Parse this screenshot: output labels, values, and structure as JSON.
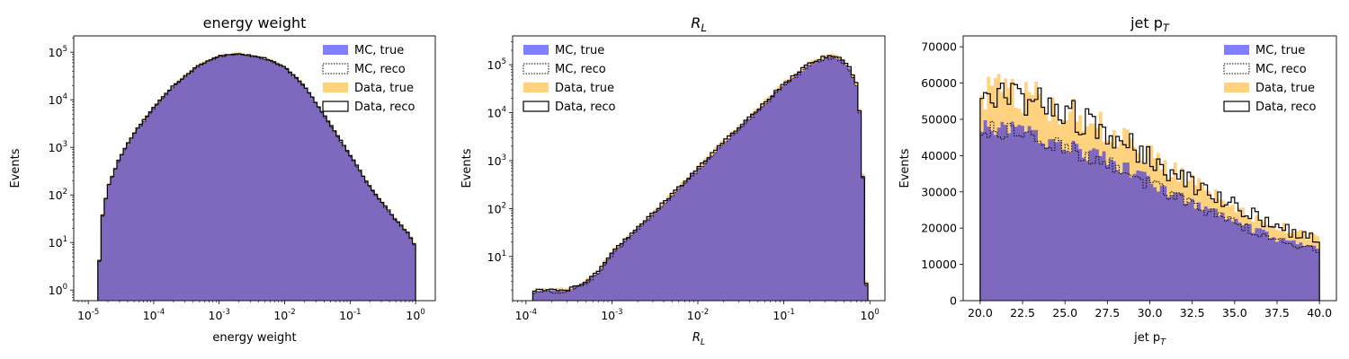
{
  "figure": {
    "colors": {
      "mc_true": "#0000ff",
      "data_true": "#ffa500",
      "overlap": "#bf9383",
      "reco_edge": "#000000"
    }
  },
  "chart_data": [
    {
      "type": "histogram",
      "title": "energy weight",
      "xlabel": "energy weight",
      "ylabel": "Events",
      "xscale": "log",
      "yscale": "log",
      "xlim": [
        6e-06,
        2.0
      ],
      "ylim": [
        0.6,
        220000.0
      ],
      "x_ticks": [
        1e-05,
        0.0001,
        0.001,
        0.01,
        0.1,
        1
      ],
      "x_tick_labels": [
        [
          "10",
          "-5"
        ],
        [
          "10",
          "-4"
        ],
        [
          "10",
          "-3"
        ],
        [
          "10",
          "-2"
        ],
        [
          "10",
          "-1"
        ],
        [
          "10",
          "0"
        ]
      ],
      "y_ticks": [
        1,
        10,
        100,
        1000,
        10000,
        100000
      ],
      "y_tick_labels": [
        [
          "10",
          "0"
        ],
        [
          "10",
          "1"
        ],
        [
          "10",
          "2"
        ],
        [
          "10",
          "3"
        ],
        [
          "10",
          "4"
        ],
        [
          "10",
          "5"
        ]
      ],
      "legend": [
        "MC, true",
        "MC, reco",
        "Data, true",
        "Data, reco"
      ],
      "legend_loc": "upper right",
      "profile": {
        "x_range": [
          1.4e-05,
          1.0
        ],
        "points": [
          [
            1.4e-05,
            1
          ],
          [
            1.6e-05,
            30
          ],
          [
            2e-05,
            150
          ],
          [
            3e-05,
            600
          ],
          [
            5e-05,
            2000
          ],
          [
            0.0001,
            7000
          ],
          [
            0.0002,
            20000
          ],
          [
            0.0005,
            55000
          ],
          [
            0.001,
            85000
          ],
          [
            0.002,
            95000
          ],
          [
            0.005,
            75000
          ],
          [
            0.01,
            50000
          ],
          [
            0.02,
            20000
          ],
          [
            0.05,
            3000
          ],
          [
            0.1,
            700
          ],
          [
            0.2,
            150
          ],
          [
            0.5,
            30
          ],
          [
            0.8,
            15
          ],
          [
            1.0,
            8
          ]
        ]
      },
      "series": [
        {
          "name": "MC, true",
          "scale": 0.97,
          "noise": 0.03
        },
        {
          "name": "MC, reco",
          "scale": 0.95,
          "noise": 0.03
        },
        {
          "name": "Data, true",
          "scale": 1.05,
          "noise": 0.03
        },
        {
          "name": "Data, reco",
          "scale": 1.0,
          "noise": 0.03
        }
      ]
    },
    {
      "type": "histogram",
      "title": "R_L",
      "xlabel": "R_L",
      "ylabel": "Events",
      "xscale": "log",
      "yscale": "log",
      "xlim": [
        7e-05,
        1.5
      ],
      "ylim": [
        1.2,
        400000.0
      ],
      "x_ticks": [
        0.0001,
        0.001,
        0.01,
        0.1,
        1
      ],
      "x_tick_labels": [
        [
          "10",
          "-4"
        ],
        [
          "10",
          "-3"
        ],
        [
          "10",
          "-2"
        ],
        [
          "10",
          "-1"
        ],
        [
          "10",
          "0"
        ]
      ],
      "y_ticks": [
        10,
        100,
        1000,
        10000,
        100000
      ],
      "y_tick_labels": [
        [
          "10",
          "1"
        ],
        [
          "10",
          "2"
        ],
        [
          "10",
          "3"
        ],
        [
          "10",
          "4"
        ],
        [
          "10",
          "5"
        ]
      ],
      "legend": [
        "MC, true",
        "MC, reco",
        "Data, true",
        "Data, reco"
      ],
      "legend_loc": "upper left",
      "profile": {
        "x_range": [
          0.00012,
          0.95
        ],
        "points": [
          [
            0.00012,
            2
          ],
          [
            0.0002,
            2
          ],
          [
            0.0003,
            2
          ],
          [
            0.0005,
            3
          ],
          [
            0.0007,
            5
          ],
          [
            0.001,
            12
          ],
          [
            0.002,
            40
          ],
          [
            0.005,
            200
          ],
          [
            0.01,
            700
          ],
          [
            0.02,
            2500
          ],
          [
            0.05,
            12000
          ],
          [
            0.1,
            40000
          ],
          [
            0.2,
            110000
          ],
          [
            0.3,
            150000
          ],
          [
            0.4,
            150000
          ],
          [
            0.5,
            120000
          ],
          [
            0.6,
            80000
          ],
          [
            0.7,
            40000
          ],
          [
            0.8,
            5000
          ],
          [
            0.9,
            3
          ],
          [
            0.95,
            2
          ]
        ]
      },
      "series": [
        {
          "name": "MC, true",
          "scale": 0.95,
          "noise": 0.06
        },
        {
          "name": "MC, reco",
          "scale": 0.9,
          "noise": 0.06
        },
        {
          "name": "Data, true",
          "scale": 1.08,
          "noise": 0.06
        },
        {
          "name": "Data, reco",
          "scale": 1.0,
          "noise": 0.06
        }
      ]
    },
    {
      "type": "histogram",
      "title": "jet p_T",
      "xlabel": "jet p_T",
      "ylabel": "Events",
      "xscale": "linear",
      "yscale": "linear",
      "xlim": [
        19.0,
        41.0
      ],
      "ylim": [
        0,
        73000
      ],
      "x_ticks": [
        20.0,
        22.5,
        25.0,
        27.5,
        30.0,
        32.5,
        35.0,
        37.5,
        40.0
      ],
      "x_tick_labels": [
        "20.0",
        "22.5",
        "25.0",
        "27.5",
        "30.0",
        "32.5",
        "35.0",
        "37.5",
        "40.0"
      ],
      "y_ticks": [
        0,
        10000,
        20000,
        30000,
        40000,
        50000,
        60000,
        70000
      ],
      "y_tick_labels": [
        "0",
        "10000",
        "20000",
        "30000",
        "40000",
        "50000",
        "60000",
        "70000"
      ],
      "legend": [
        "MC, true",
        "MC, reco",
        "Data, true",
        "Data, reco"
      ],
      "legend_loc": "upper right",
      "profile": {
        "x_range": [
          20.0,
          40.0
        ],
        "points": [
          [
            20.0,
            47000
          ],
          [
            21.0,
            48000
          ],
          [
            23.0,
            46000
          ],
          [
            25.0,
            43000
          ],
          [
            27.5,
            39000
          ],
          [
            30.0,
            33000
          ],
          [
            32.5,
            27000
          ],
          [
            35.0,
            22000
          ],
          [
            37.5,
            17000
          ],
          [
            40.0,
            14000
          ]
        ]
      },
      "series": [
        {
          "name": "MC, true",
          "scale": 1.0,
          "noise": 0.06
        },
        {
          "name": "MC, reco",
          "scale": 0.98,
          "noise": 0.06
        },
        {
          "name": "Data, true",
          "scale": 1.22,
          "noise": 0.09
        },
        {
          "name": "Data, reco",
          "scale": 1.2,
          "noise": 0.09
        }
      ]
    }
  ]
}
